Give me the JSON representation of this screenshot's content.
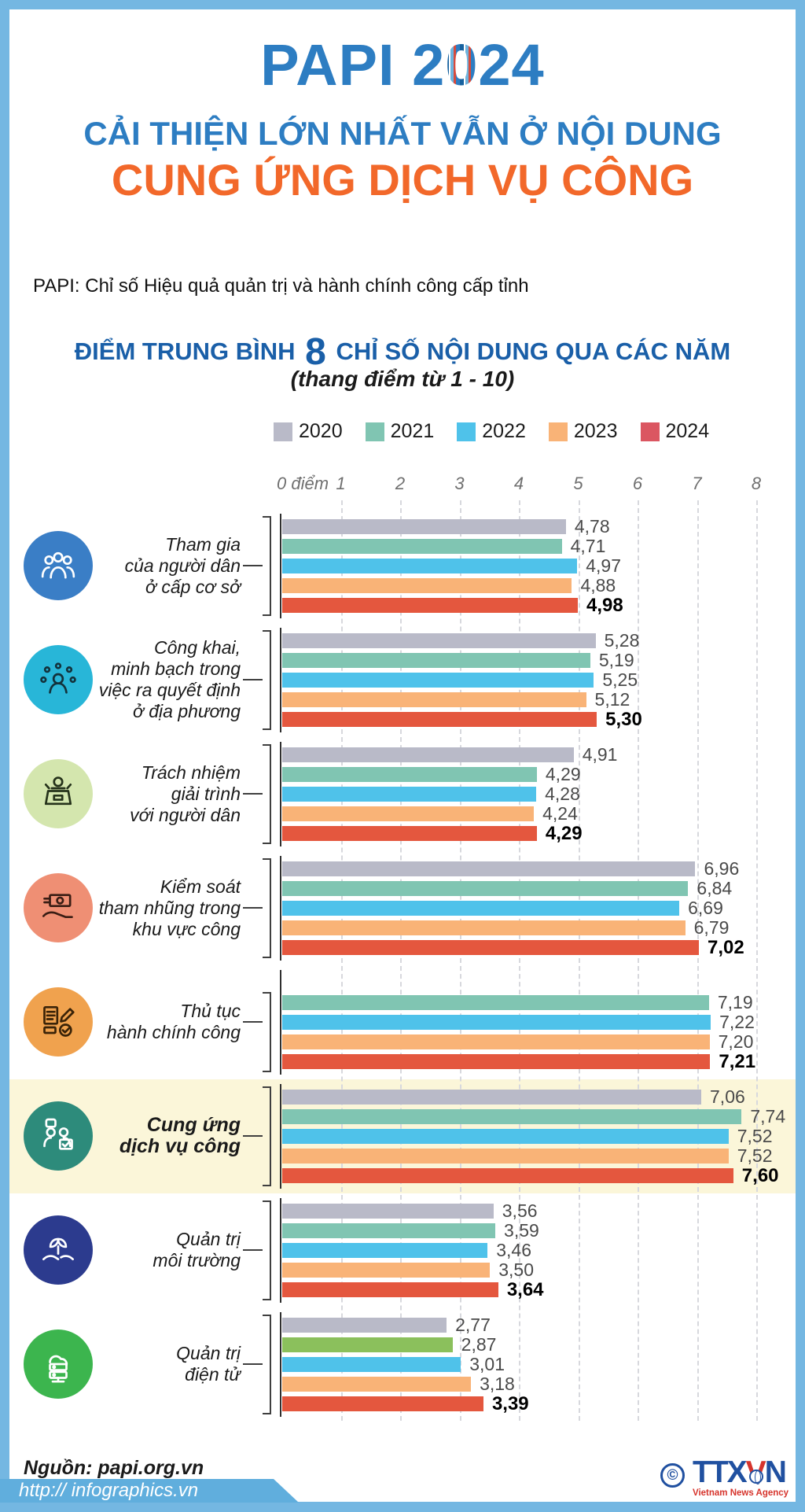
{
  "page": {
    "title_prefix": "PAPI 2",
    "title_globe_digit": "0",
    "title_suffix": "24",
    "subtitle_line1": "CẢI THIỆN LỚN NHẤT VẪN Ở NỘI DUNG",
    "subtitle_line2": "CUNG ỨNG DỊCH VỤ CÔNG",
    "definition": "PAPI: Chỉ số Hiệu quả quản trị và hành chính công cấp tỉnh",
    "chart_title_pre": "ĐIỂM TRUNG BÌNH",
    "chart_title_number": "8",
    "chart_title_post": "CHỈ SỐ NỘI DUNG QUA CÁC NĂM",
    "chart_subtitle": "(thang điểm từ 1 - 10)",
    "source": "Nguồn: papi.org.vn",
    "footer_url": "http:// infographics.vn",
    "agency_copyright": "©",
    "agency_logo_t": "TTX",
    "agency_logo_v": "V",
    "agency_logo_n": "N",
    "agency_name": "Vietnam News Agency"
  },
  "chart_data": {
    "type": "bar",
    "orientation": "horizontal",
    "title": "ĐIỂM TRUNG BÌNH 8 CHỈ SỐ NỘI DUNG QUA CÁC NĂM",
    "subtitle": "(thang điểm từ 1 - 10)",
    "value_range": [
      0,
      8
    ],
    "grid": true,
    "legend_position": "top",
    "axis": {
      "zero_label": "0 điểm",
      "ticks": [
        1,
        2,
        3,
        4,
        5,
        6,
        7,
        8
      ]
    },
    "legend": [
      {
        "year": "2020",
        "color": "#b9bac8"
      },
      {
        "year": "2021",
        "color": "#80c5b2"
      },
      {
        "year": "2022",
        "color": "#4fc2ea"
      },
      {
        "year": "2023",
        "color": "#f9b377"
      },
      {
        "year": "2024",
        "color": "#db5661"
      }
    ],
    "series_colors": {
      "2020": "#b9bac8",
      "2021": "#80c5b2",
      "2022": "#4fc2ea",
      "2023": "#f9b377",
      "2024": "#e4573e"
    },
    "groups": [
      {
        "id": "tham-gia",
        "label_lines": [
          "Tham gia",
          "của người dân",
          "ở cấp cơ sở"
        ],
        "icon": "people-icon",
        "icon_bg": "#3a7ec6",
        "icon_fg": "#ffffff",
        "bold_label": false,
        "highlight": false,
        "values": [
          4.78,
          4.71,
          4.97,
          4.88,
          4.98
        ]
      },
      {
        "id": "cong-khai",
        "label_lines": [
          "Công khai,",
          "minh bạch trong",
          "việc ra quyết định",
          "ở địa phương"
        ],
        "icon": "transparency-icon",
        "icon_bg": "#28b6d8",
        "icon_fg": "#13323c",
        "bold_label": false,
        "highlight": false,
        "values": [
          5.28,
          5.19,
          5.25,
          5.12,
          5.3
        ]
      },
      {
        "id": "trach-nhiem",
        "label_lines": [
          "Trách nhiệm",
          "giải trình",
          "với người dân"
        ],
        "icon": "podium-icon",
        "icon_bg": "#d4e6ae",
        "icon_fg": "#25321a",
        "bold_label": false,
        "highlight": false,
        "values": [
          4.91,
          4.29,
          4.28,
          4.24,
          4.29
        ]
      },
      {
        "id": "kiem-soat",
        "label_lines": [
          "Kiểm soát",
          "tham nhũng trong",
          "khu vực công"
        ],
        "icon": "anti-corruption-icon",
        "icon_bg": "#ef8f74",
        "icon_fg": "#3a1d14",
        "bold_label": false,
        "highlight": false,
        "values": [
          6.96,
          6.84,
          6.69,
          6.79,
          7.02
        ]
      },
      {
        "id": "thu-tuc",
        "label_lines": [
          "Thủ tục",
          "hành chính công"
        ],
        "icon": "procedures-icon",
        "icon_bg": "#f0a24e",
        "icon_fg": "#3a2308",
        "bold_label": false,
        "highlight": false,
        "values": [
          null,
          7.19,
          7.22,
          7.2,
          7.21
        ]
      },
      {
        "id": "cung-ung",
        "label_lines": [
          "Cung ứng",
          "dịch vụ công"
        ],
        "icon": "public-services-icon",
        "icon_bg": "#2d8b7b",
        "icon_fg": "#ffffff",
        "bold_label": true,
        "highlight": true,
        "values": [
          7.06,
          7.74,
          7.52,
          7.52,
          7.6
        ]
      },
      {
        "id": "moi-truong",
        "label_lines": [
          "Quản trị",
          "môi trường"
        ],
        "icon": "environment-icon",
        "icon_bg": "#2c3b8e",
        "icon_fg": "#ffffff",
        "bold_label": false,
        "highlight": false,
        "values": [
          3.56,
          3.59,
          3.46,
          3.5,
          3.64
        ]
      },
      {
        "id": "dien-tu",
        "label_lines": [
          "Quản trị",
          "điện tử"
        ],
        "icon": "e-governance-icon",
        "icon_bg": "#3cb54e",
        "icon_fg": "#ffffff",
        "bold_label": false,
        "highlight": false,
        "values": [
          2.77,
          2.87,
          3.01,
          3.18,
          3.39
        ],
        "color_overrides": {
          "1": "#8bc05c"
        }
      }
    ]
  }
}
